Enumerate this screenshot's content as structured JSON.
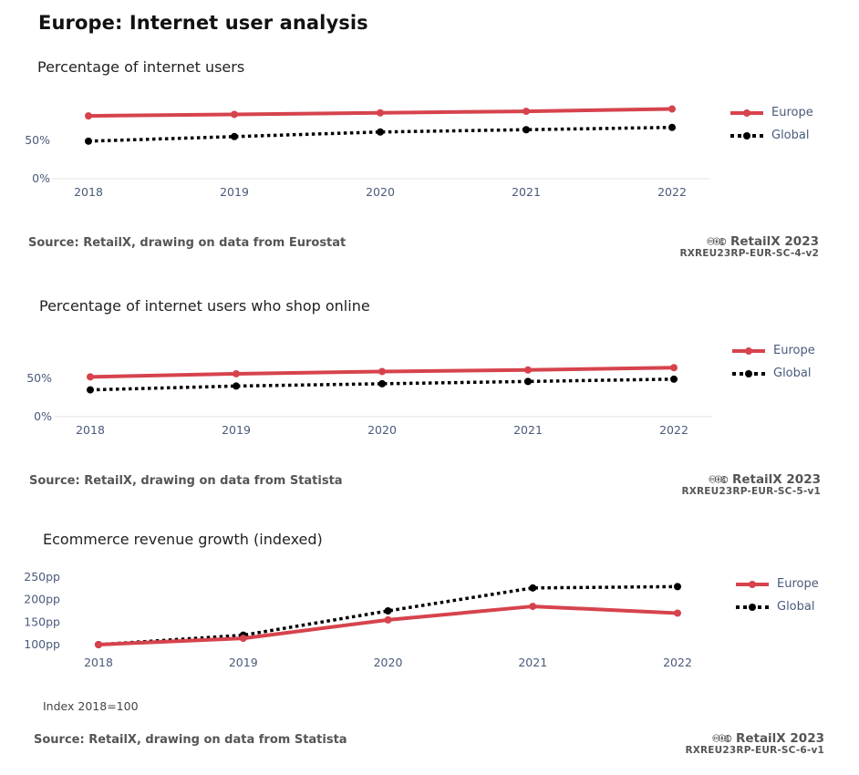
{
  "page": {
    "title": "Europe: Internet user analysis"
  },
  "colors": {
    "europe": "#d6434d",
    "global": "#000000",
    "axis": "#e6e6e6",
    "tick_text": "#4a5a7a"
  },
  "legend": {
    "europe": "Europe",
    "global": "Global"
  },
  "charts": [
    {
      "title": "Percentage of internet users",
      "source": "Source: RetailX, drawing on data from Eurostat",
      "brand": "RetailX 2023",
      "code": "RXREU23RP-EUR-SC-4-v2",
      "note": "",
      "cc_icons": "🅭🅯🅮"
    },
    {
      "title": "Percentage of internet users who shop online",
      "source": "Source: RetailX, drawing on data from Statista",
      "brand": "RetailX 2023",
      "code": "RXREU23RP-EUR-SC-5-v1",
      "note": "",
      "cc_icons": "🅭🅯🅮"
    },
    {
      "title": "Ecommerce revenue growth (indexed)",
      "source": "Source: RetailX, drawing on data from Statista",
      "brand": "RetailX 2023",
      "code": "RXREU23RP-EUR-SC-6-v1",
      "note": "Index 2018=100",
      "cc_icons": "🅭🅯🅮"
    }
  ],
  "chart_data": [
    {
      "type": "line",
      "title": "Percentage of internet users",
      "x": [
        "2018",
        "2019",
        "2020",
        "2021",
        "2022"
      ],
      "series": [
        {
          "name": "Europe",
          "values": [
            82,
            84,
            86,
            88,
            91
          ],
          "style": "solid"
        },
        {
          "name": "Global",
          "values": [
            49,
            55,
            61,
            64,
            67
          ],
          "style": "dotted"
        }
      ],
      "yticks": [
        0,
        50
      ],
      "ytick_labels": [
        "0%",
        "50%"
      ],
      "ylim": [
        0,
        100
      ],
      "legend_position": "top-right",
      "grid": false
    },
    {
      "type": "line",
      "title": "Percentage of internet users who shop online",
      "x": [
        "2018",
        "2019",
        "2020",
        "2021",
        "2022"
      ],
      "series": [
        {
          "name": "Europe",
          "values": [
            52,
            56,
            59,
            61,
            64
          ],
          "style": "solid"
        },
        {
          "name": "Global",
          "values": [
            35,
            40,
            43,
            46,
            49
          ],
          "style": "dotted"
        }
      ],
      "yticks": [
        0,
        50
      ],
      "ytick_labels": [
        "0%",
        "50%"
      ],
      "ylim": [
        0,
        100
      ],
      "legend_position": "top-right",
      "grid": false
    },
    {
      "type": "line",
      "title": "Ecommerce revenue growth (indexed)",
      "x": [
        "2018",
        "2019",
        "2020",
        "2021",
        "2022"
      ],
      "series": [
        {
          "name": "Europe",
          "values": [
            100,
            114,
            155,
            185,
            170
          ],
          "style": "solid"
        },
        {
          "name": "Global",
          "values": [
            100,
            121,
            175,
            226,
            229
          ],
          "style": "dotted"
        }
      ],
      "yticks": [
        100,
        150,
        200,
        250
      ],
      "ytick_labels": [
        "100pp",
        "150pp",
        "200pp",
        "250pp"
      ],
      "ylim": [
        100,
        250
      ],
      "legend_position": "top-right",
      "grid": false
    }
  ]
}
